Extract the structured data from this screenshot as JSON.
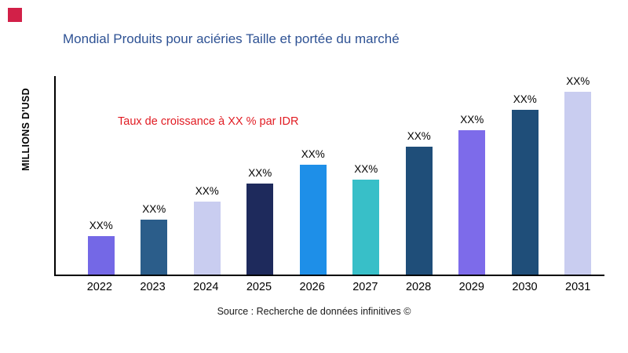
{
  "branding": {
    "logo_color": "#d22048"
  },
  "footer": {
    "source": "Source : Recherche de données infinitives ©"
  },
  "chart_data": {
    "type": "bar",
    "title": "Mondial Produits pour aciéries Taille et portée du marché",
    "title_color": "#2e5294",
    "xlabel": "",
    "ylabel": "MILLIONS D'USD",
    "categories": [
      "2022",
      "2023",
      "2024",
      "2025",
      "2026",
      "2027",
      "2028",
      "2029",
      "2030",
      "2031"
    ],
    "bar_labels": [
      "XX%",
      "XX%",
      "XX%",
      "XX%",
      "XX%",
      "XX%",
      "XX%",
      "XX%",
      "XX%",
      "XX%"
    ],
    "values_relative_height_pct": [
      21,
      30,
      40,
      50,
      60,
      52,
      70,
      79,
      90,
      100
    ],
    "bar_colors": [
      "#7468e6",
      "#2b5d8a",
      "#c9cdf0",
      "#1e2a5c",
      "#1e8fe8",
      "#38bfc8",
      "#1f4e79",
      "#7d6bea",
      "#1f4e79",
      "#c9cdf0"
    ],
    "annotation": {
      "text": "Taux de croissance à XX % par IDR",
      "color": "#e11b22"
    },
    "legend": "none",
    "grid": false,
    "axis_color": "#000000"
  }
}
